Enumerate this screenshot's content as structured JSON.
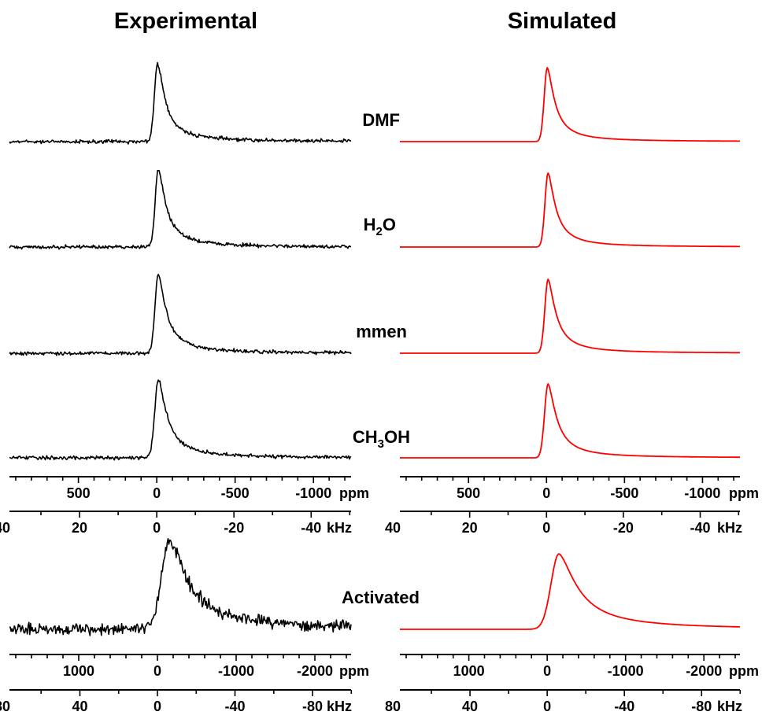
{
  "chart_data": {
    "type": "line",
    "columns": [
      {
        "title": "Experimental",
        "line_color": "#000000"
      },
      {
        "title": "Simulated",
        "line_color": "#ff0000"
      }
    ],
    "sample_labels": [
      {
        "text": "DMF",
        "main": "DMF",
        "sub": "",
        "tail": ""
      },
      {
        "text": "H2O",
        "main": "H",
        "sub": "2",
        "tail": "O"
      },
      {
        "text": "mmen",
        "main": "mmen",
        "sub": "",
        "tail": ""
      },
      {
        "text": "CH3OH",
        "main": "CH",
        "sub": "3",
        "tail": "OH"
      },
      {
        "text": "Activated",
        "main": "Activated",
        "sub": "",
        "tail": ""
      }
    ],
    "panels": [
      {
        "ppm_range": [
          940,
          -1240
        ],
        "ppm_ticks": [
          500,
          0,
          -500,
          -1000
        ],
        "ppm_unit": "ppm",
        "khz_ticks": [
          40,
          20,
          0,
          -20,
          -40
        ],
        "khz_unit": "kHz",
        "khz_per_ppm": 0.0406,
        "traces": [
          {
            "sample": "DMF",
            "peak_ppm": -5,
            "fwhm_ppm": 110
          },
          {
            "sample": "H2O",
            "peak_ppm": -10,
            "fwhm_ppm": 110
          },
          {
            "sample": "mmen",
            "peak_ppm": -10,
            "fwhm_ppm": 115
          },
          {
            "sample": "CH3OH",
            "peak_ppm": -10,
            "fwhm_ppm": 125
          }
        ]
      },
      {
        "ppm_range": [
          1880,
          -2460
        ],
        "ppm_ticks": [
          1000,
          0,
          -1000,
          -2000
        ],
        "ppm_unit": "ppm",
        "khz_ticks": [
          80,
          40,
          0,
          -40,
          -80
        ],
        "khz_unit": "kHz",
        "khz_per_ppm": 0.0406,
        "traces": [
          {
            "sample": "Activated",
            "peak_ppm": -150,
            "fwhm_ppm": 560
          }
        ]
      }
    ]
  }
}
